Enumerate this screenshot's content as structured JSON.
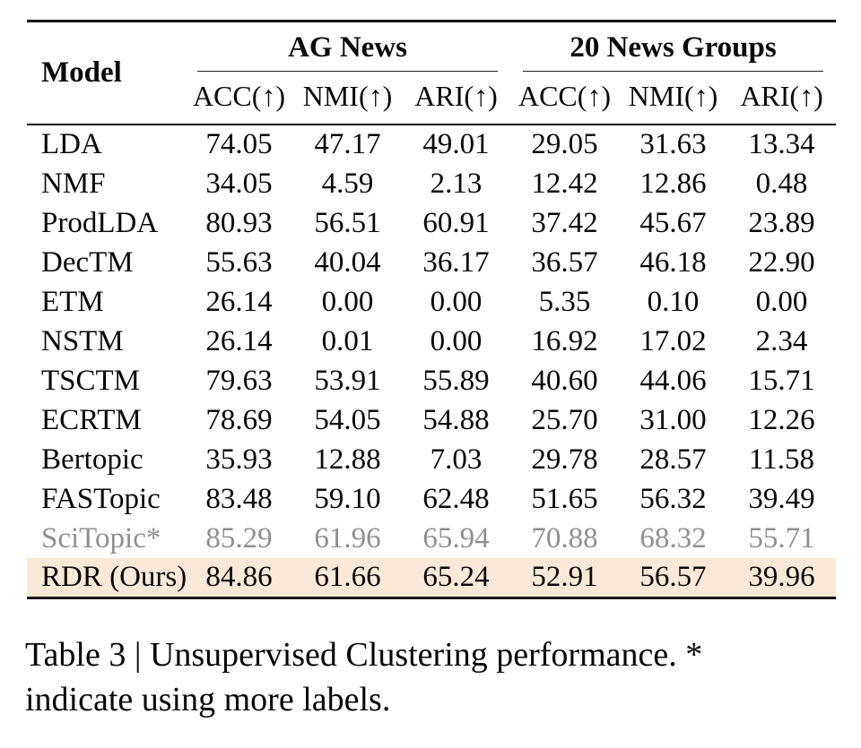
{
  "table": {
    "model_header": "Model",
    "groups": [
      {
        "label": "AG News",
        "columns": [
          "ACC(↑)",
          "NMI(↑)",
          "ARI(↑)"
        ]
      },
      {
        "label": "20 News Groups",
        "columns": [
          "ACC(↑)",
          "NMI(↑)",
          "ARI(↑)"
        ]
      }
    ],
    "rows": [
      {
        "model": "LDA",
        "style": "normal",
        "values": [
          "74.05",
          "47.17",
          "49.01",
          "29.05",
          "31.63",
          "13.34"
        ]
      },
      {
        "model": "NMF",
        "style": "normal",
        "values": [
          "34.05",
          "4.59",
          "2.13",
          "12.42",
          "12.86",
          "0.48"
        ]
      },
      {
        "model": "ProdLDA",
        "style": "normal",
        "values": [
          "80.93",
          "56.51",
          "60.91",
          "37.42",
          "45.67",
          "23.89"
        ]
      },
      {
        "model": "DecTM",
        "style": "normal",
        "values": [
          "55.63",
          "40.04",
          "36.17",
          "36.57",
          "46.18",
          "22.90"
        ]
      },
      {
        "model": "ETM",
        "style": "normal",
        "values": [
          "26.14",
          "0.00",
          "0.00",
          "5.35",
          "0.10",
          "0.00"
        ]
      },
      {
        "model": "NSTM",
        "style": "normal",
        "values": [
          "26.14",
          "0.01",
          "0.00",
          "16.92",
          "17.02",
          "2.34"
        ]
      },
      {
        "model": "TSCTM",
        "style": "normal",
        "values": [
          "79.63",
          "53.91",
          "55.89",
          "40.60",
          "44.06",
          "15.71"
        ]
      },
      {
        "model": "ECRTM",
        "style": "normal",
        "values": [
          "78.69",
          "54.05",
          "54.88",
          "25.70",
          "31.00",
          "12.26"
        ]
      },
      {
        "model": "Bertopic",
        "style": "normal",
        "values": [
          "35.93",
          "12.88",
          "7.03",
          "29.78",
          "28.57",
          "11.58"
        ]
      },
      {
        "model": "FASTopic",
        "style": "normal",
        "values": [
          "83.48",
          "59.10",
          "62.48",
          "51.65",
          "56.32",
          "39.49"
        ]
      },
      {
        "model": "SciTopic*",
        "style": "muted",
        "values": [
          "85.29",
          "61.96",
          "65.94",
          "70.88",
          "68.32",
          "55.71"
        ]
      },
      {
        "model": "RDR (Ours)",
        "style": "highlight",
        "values": [
          "84.86",
          "61.66",
          "65.24",
          "52.91",
          "56.57",
          "39.96"
        ]
      }
    ]
  },
  "caption": {
    "full_text": "Table 3 | Unsupervised Clustering performance. * indicate using more labels.",
    "line1": "Table 3 | Unsupervised Clustering performance. *",
    "line2": "indicate using more labels."
  },
  "colors": {
    "highlight_row_bg": "#fbe9d8",
    "muted_text": "#8f8f8f",
    "rule_color": "#141414"
  }
}
